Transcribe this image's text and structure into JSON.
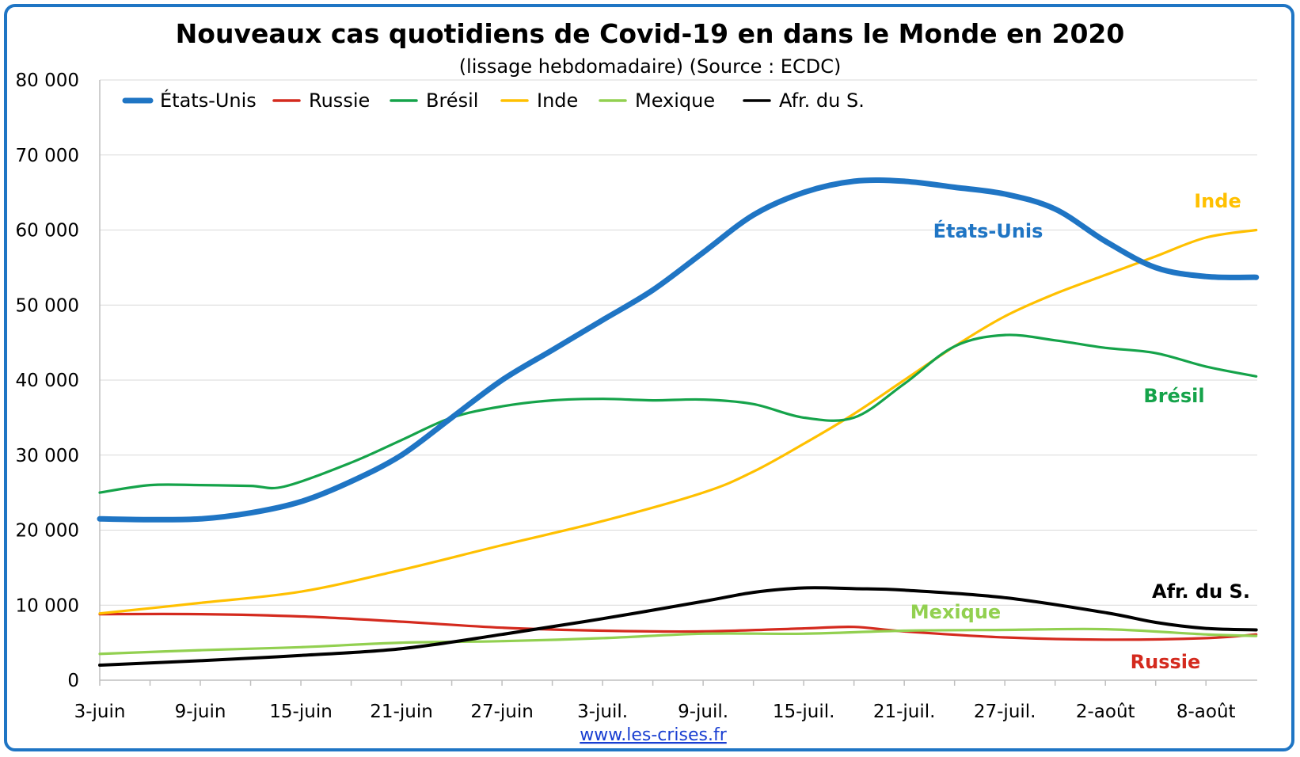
{
  "chart_data": {
    "type": "line",
    "title": "Nouveaux cas quotidiens de Covid-19 en dans le Monde en 2020",
    "subtitle": "(lissage hebdomadaire) (Source : ECDC)",
    "source_link": "www.les-crises.fr",
    "x_start": "2020-06-03",
    "x_tick_labels": [
      "3-juin",
      "9-juin",
      "15-juin",
      "21-juin",
      "27-juin",
      "3-juil.",
      "9-juil.",
      "15-juil.",
      "21-juil.",
      "27-juil.",
      "2-août",
      "8-août"
    ],
    "y_tick_labels": [
      "0",
      "10 000",
      "20 000",
      "30 000",
      "40 000",
      "50 000",
      "60 000",
      "70 000",
      "80 000"
    ],
    "ylim": [
      0,
      80000
    ],
    "grid": true,
    "legend_position": "top-left",
    "series": [
      {
        "name": "États-Unis",
        "label": "États-Unis",
        "color": "#1f75c4",
        "x": [
          "2020-06-03",
          "2020-06-06",
          "2020-06-09",
          "2020-06-12",
          "2020-06-15",
          "2020-06-18",
          "2020-06-21",
          "2020-06-24",
          "2020-06-27",
          "2020-06-30",
          "2020-07-03",
          "2020-07-06",
          "2020-07-09",
          "2020-07-12",
          "2020-07-15",
          "2020-07-18",
          "2020-07-21",
          "2020-07-24",
          "2020-07-27",
          "2020-07-30",
          "2020-08-02",
          "2020-08-05",
          "2020-08-08",
          "2020-08-11"
        ],
        "values": [
          21500,
          21400,
          21500,
          22300,
          23800,
          26500,
          30000,
          35000,
          40000,
          44000,
          48000,
          52000,
          57000,
          62000,
          65000,
          66500,
          66500,
          65700,
          64800,
          62800,
          58500,
          55000,
          53800,
          53700
        ]
      },
      {
        "name": "Russie",
        "label": "Russie",
        "color": "#d42a1e",
        "x": [
          "2020-06-03",
          "2020-06-09",
          "2020-06-15",
          "2020-06-21",
          "2020-06-27",
          "2020-07-03",
          "2020-07-09",
          "2020-07-15",
          "2020-07-18",
          "2020-07-21",
          "2020-07-27",
          "2020-08-02",
          "2020-08-08",
          "2020-08-11"
        ],
        "values": [
          8800,
          8800,
          8500,
          7800,
          7000,
          6600,
          6500,
          6900,
          7100,
          6500,
          5700,
          5400,
          5600,
          6100
        ]
      },
      {
        "name": "Brésil",
        "label": "Brésil",
        "color": "#15a34a",
        "x": [
          "2020-06-03",
          "2020-06-06",
          "2020-06-09",
          "2020-06-12",
          "2020-06-14",
          "2020-06-18",
          "2020-06-21",
          "2020-06-24",
          "2020-06-27",
          "2020-06-30",
          "2020-07-03",
          "2020-07-06",
          "2020-07-09",
          "2020-07-12",
          "2020-07-15",
          "2020-07-18",
          "2020-07-21",
          "2020-07-24",
          "2020-07-27",
          "2020-07-30",
          "2020-08-02",
          "2020-08-05",
          "2020-08-08",
          "2020-08-11"
        ],
        "values": [
          25000,
          26000,
          26000,
          25900,
          25800,
          29000,
          32000,
          35000,
          36500,
          37300,
          37500,
          37300,
          37400,
          36800,
          35000,
          35000,
          39500,
          44500,
          46000,
          45300,
          44300,
          43600,
          41800,
          40500
        ]
      },
      {
        "name": "Inde",
        "label": "Inde",
        "color": "#ffc000",
        "x": [
          "2020-06-03",
          "2020-06-09",
          "2020-06-15",
          "2020-06-21",
          "2020-06-27",
          "2020-07-03",
          "2020-07-09",
          "2020-07-12",
          "2020-07-15",
          "2020-07-18",
          "2020-07-21",
          "2020-07-24",
          "2020-07-27",
          "2020-07-30",
          "2020-08-02",
          "2020-08-05",
          "2020-08-08",
          "2020-08-11"
        ],
        "values": [
          8900,
          10300,
          11800,
          14700,
          18000,
          21200,
          25000,
          27800,
          31500,
          35500,
          40000,
          44500,
          48500,
          51500,
          54000,
          56500,
          59000,
          60000
        ]
      },
      {
        "name": "Mexique",
        "label": "Mexique",
        "color": "#92d050",
        "x": [
          "2020-06-03",
          "2020-06-09",
          "2020-06-15",
          "2020-06-21",
          "2020-06-27",
          "2020-07-03",
          "2020-07-09",
          "2020-07-15",
          "2020-07-21",
          "2020-07-27",
          "2020-08-02",
          "2020-08-08",
          "2020-08-11"
        ],
        "values": [
          3500,
          4000,
          4400,
          5000,
          5200,
          5600,
          6200,
          6200,
          6600,
          6700,
          6800,
          6100,
          5900
        ]
      },
      {
        "name": "Afr. du S.",
        "label": "Afr. du S.",
        "color": "#000000",
        "x": [
          "2020-06-03",
          "2020-06-09",
          "2020-06-15",
          "2020-06-21",
          "2020-06-27",
          "2020-07-03",
          "2020-07-09",
          "2020-07-12",
          "2020-07-15",
          "2020-07-18",
          "2020-07-21",
          "2020-07-27",
          "2020-08-02",
          "2020-08-05",
          "2020-08-08",
          "2020-08-11"
        ],
        "values": [
          2000,
          2600,
          3300,
          4200,
          6100,
          8200,
          10500,
          11700,
          12300,
          12200,
          12000,
          11000,
          9000,
          7700,
          6900,
          6700
        ]
      }
    ]
  }
}
